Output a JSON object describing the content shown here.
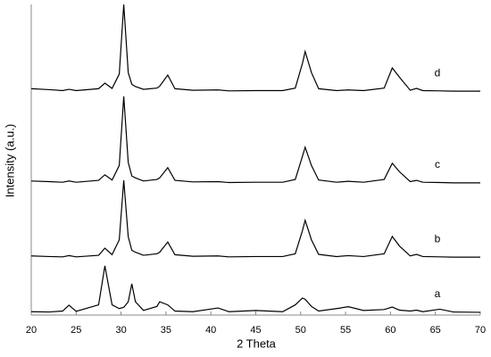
{
  "chart_data": {
    "type": "line",
    "x_label": "2 Theta",
    "y_label": "Intensity (a.u.)",
    "x": [
      20,
      22,
      23.5,
      24.2,
      25,
      27.5,
      28.2,
      29,
      29.8,
      30.3,
      30.8,
      31.2,
      31.6,
      32.5,
      34,
      34.3,
      35.2,
      36,
      38,
      40.8,
      42,
      45,
      48,
      49.4,
      50.2,
      50.5,
      51.2,
      52,
      54,
      55.3,
      57,
      59.3,
      60.2,
      61,
      62.2,
      62.9,
      63.6,
      65.5,
      67,
      70
    ],
    "series": [
      {
        "name": "a",
        "color": "#000000",
        "values": [
          0.8,
          0.7,
          1,
          2.9,
          0.9,
          3,
          15.6,
          3,
          1.8,
          2.2,
          4,
          9.8,
          4,
          1.2,
          2.5,
          4,
          3,
          1,
          0.8,
          2,
          0.8,
          1.2,
          0.8,
          3,
          5.2,
          4.8,
          2.5,
          1,
          1.8,
          2.4,
          1.2,
          1.5,
          2.3,
          1.3,
          1,
          1.3,
          0.8,
          1.6,
          0.7,
          0.6
        ]
      },
      {
        "name": "b",
        "color": "#000000",
        "values": [
          18.8,
          18.6,
          18.5,
          18.9,
          18.5,
          19,
          21.3,
          19.2,
          24,
          43.2,
          25,
          20.6,
          20,
          19,
          19.5,
          20,
          23.3,
          19.2,
          18.7,
          18.8,
          18.5,
          18.6,
          18.6,
          19.5,
          27,
          30.3,
          24,
          19.3,
          18.6,
          18.9,
          18.6,
          19.5,
          25.1,
          22,
          18.8,
          19.3,
          18.6,
          18.5,
          18.4,
          18.4
        ]
      },
      {
        "name": "c",
        "color": "#000000",
        "values": [
          43,
          42.8,
          42.6,
          43,
          42.6,
          43.2,
          45,
          43.3,
          48,
          70.3,
          49,
          44.6,
          44,
          43,
          43.5,
          44,
          47.3,
          43.2,
          42.7,
          42.8,
          42.5,
          42.6,
          42.6,
          43.5,
          51,
          53.9,
          48,
          43.3,
          42.6,
          42.9,
          42.6,
          43.5,
          48.7,
          46,
          42.8,
          43.2,
          42.6,
          42.5,
          42.4,
          42.4
        ]
      },
      {
        "name": "d",
        "color": "#000000",
        "values": [
          72.8,
          72.5,
          72.2,
          72.6,
          72.2,
          72.8,
          74.6,
          72.9,
          77.5,
          100,
          78,
          74.2,
          73.5,
          72.6,
          73,
          73.6,
          77.2,
          72.8,
          72.3,
          72.4,
          72.1,
          72.2,
          72.2,
          73,
          81,
          84.8,
          78,
          72.8,
          72.2,
          72.4,
          72.2,
          73,
          79.5,
          76.5,
          72.3,
          72.9,
          72.2,
          72.1,
          72,
          72
        ]
      }
    ],
    "xlim": [
      20,
      70
    ],
    "xticks": [
      20,
      25,
      30,
      35,
      40,
      45,
      50,
      55,
      60,
      65,
      70
    ],
    "ylim": [
      0,
      100
    ]
  }
}
